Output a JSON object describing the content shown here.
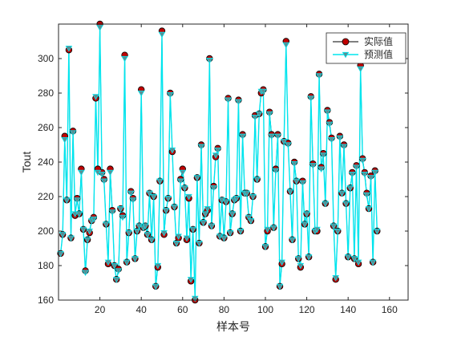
{
  "chart_data": {
    "type": "line",
    "title": "",
    "xlabel": "样本号",
    "ylabel": "Tout",
    "xlim": [
      0,
      169
    ],
    "ylim": [
      160,
      320
    ],
    "xticks": [
      20,
      40,
      60,
      80,
      100,
      120,
      140,
      160
    ],
    "yticks": [
      160,
      180,
      200,
      220,
      240,
      260,
      280,
      300
    ],
    "grid": false,
    "legend_position": "top-right",
    "colors": {
      "actual_marker": "#c00000",
      "predicted_line": "#00e5ee",
      "predicted_marker": "#5c8d93"
    },
    "series": [
      {
        "name": "实际值",
        "style": "red circle markers with black line",
        "values": [
          187,
          198,
          255,
          218,
          305,
          196,
          258,
          209,
          219,
          210,
          236,
          201,
          177,
          195,
          199,
          206,
          208,
          277,
          236,
          320,
          234,
          230,
          204,
          181,
          236,
          212,
          180,
          172,
          178,
          213,
          209,
          302,
          182,
          199,
          223,
          219,
          184,
          200,
          203,
          282,
          202,
          203,
          198,
          222,
          195,
          220,
          168,
          179,
          229,
          316,
          198,
          212,
          219,
          280,
          246,
          214,
          193,
          196,
          230,
          236,
          225,
          195,
          219,
          171,
          201,
          160,
          231,
          193,
          250,
          205,
          210,
          212,
          300,
          203,
          226,
          243,
          248,
          197,
          218,
          196,
          217,
          277,
          199,
          210,
          218,
          219,
          276,
          200,
          256,
          222,
          222,
          208,
          206,
          220,
          267,
          230,
          268,
          280,
          282,
          191,
          200,
          269,
          256,
          202,
          236,
          256,
          168,
          181,
          252,
          310,
          251,
          223,
          195,
          240,
          229,
          184,
          179,
          229,
          204,
          210,
          185,
          278,
          239,
          200,
          200,
          291,
          237,
          245,
          216,
          270,
          263,
          254,
          203,
          172,
          200,
          255,
          222,
          250,
          216,
          185,
          225,
          234,
          184,
          238,
          181,
          296,
          242,
          234,
          222,
          213,
          232,
          182,
          235,
          200
        ],
        "note": "values at sample numbers 1..154 (approximated from plot)"
      },
      {
        "name": "预测值",
        "style": "cyan line with downward triangle markers",
        "values": [
          187,
          198,
          253,
          218,
          306,
          196,
          257,
          210,
          218,
          210,
          234,
          201,
          176,
          195,
          200,
          206,
          207,
          278,
          234,
          318,
          233,
          229,
          204,
          182,
          234,
          211,
          180,
          172,
          177,
          213,
          208,
          300,
          182,
          199,
          222,
          218,
          184,
          200,
          203,
          280,
          202,
          203,
          198,
          222,
          195,
          220,
          168,
          180,
          229,
          314,
          199,
          212,
          219,
          279,
          247,
          214,
          193,
          197,
          229,
          234,
          225,
          196,
          220,
          172,
          201,
          161,
          231,
          193,
          249,
          205,
          210,
          213,
          299,
          203,
          225,
          244,
          247,
          197,
          218,
          196,
          217,
          276,
          199,
          210,
          218,
          219,
          275,
          200,
          255,
          222,
          222,
          208,
          206,
          220,
          266,
          230,
          268,
          281,
          281,
          191,
          201,
          268,
          255,
          202,
          235,
          255,
          168,
          182,
          252,
          308,
          250,
          223,
          195,
          239,
          229,
          184,
          180,
          228,
          204,
          210,
          185,
          277,
          238,
          200,
          201,
          290,
          236,
          244,
          216,
          269,
          262,
          253,
          203,
          173,
          200,
          254,
          222,
          249,
          216,
          185,
          225,
          233,
          184,
          237,
          182,
          294,
          241,
          233,
          221,
          213,
          231,
          182,
          234,
          200
        ]
      }
    ]
  }
}
